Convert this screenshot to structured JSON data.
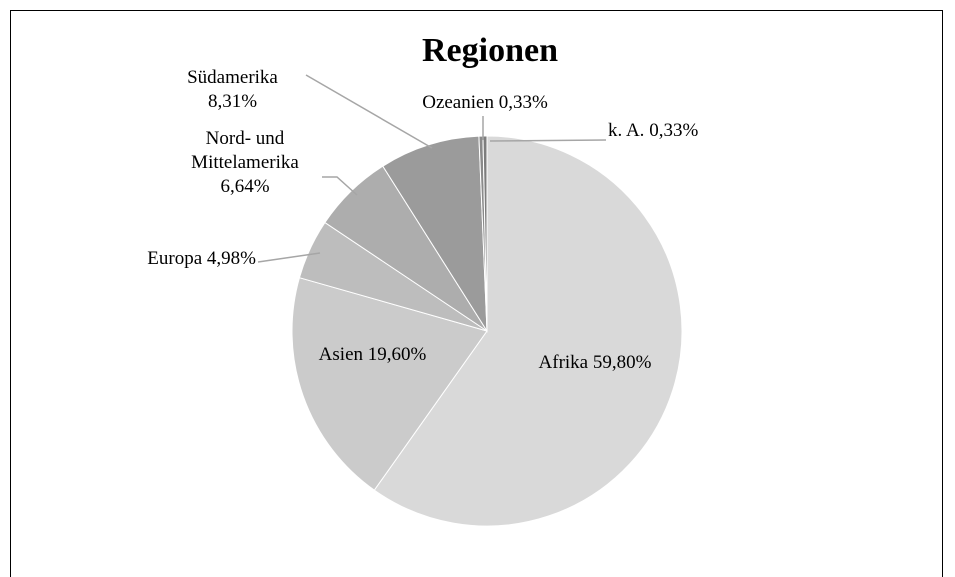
{
  "chart_data": {
    "type": "pie",
    "title": "Regionen",
    "categories": [
      "Afrika",
      "Asien",
      "Europa",
      "Nord- und Mittelamerika",
      "Südamerika",
      "Ozeanien",
      "k. A."
    ],
    "values": [
      59.8,
      19.6,
      4.98,
      6.64,
      8.31,
      0.33,
      0.33
    ],
    "value_labels": [
      "59,80%",
      "19,60%",
      "4,98%",
      "6,64%",
      "8,31%",
      "0,33%",
      "0,33%"
    ],
    "colors": [
      "#d9d9d9",
      "#cbcbcb",
      "#bdbdbd",
      "#adadad",
      "#9b9b9b",
      "#8a8a8a",
      "#7d7d7d"
    ]
  }
}
